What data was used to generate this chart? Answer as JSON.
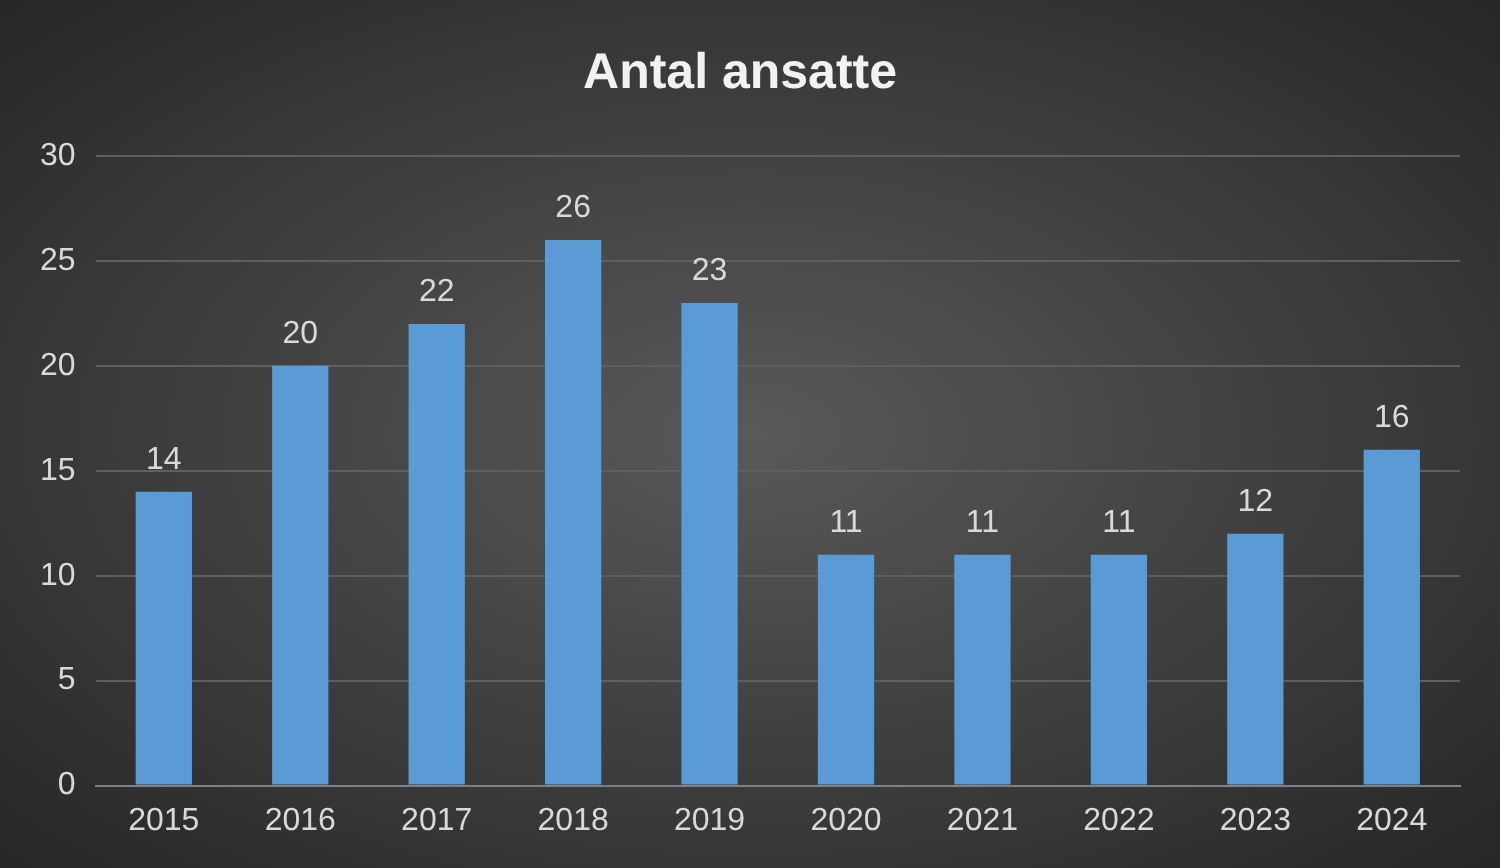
{
  "chart_data": {
    "type": "bar",
    "title": "Antal ansatte",
    "categories": [
      "2015",
      "2016",
      "2017",
      "2018",
      "2019",
      "2020",
      "2021",
      "2022",
      "2023",
      "2024"
    ],
    "values": [
      14,
      20,
      22,
      26,
      23,
      11,
      11,
      11,
      12,
      16
    ],
    "color": "#5b9bd5",
    "ylim": [
      0,
      30
    ],
    "yticks": [
      0,
      5,
      10,
      15,
      20,
      25,
      30
    ],
    "grid": "y",
    "data_labels": true
  }
}
